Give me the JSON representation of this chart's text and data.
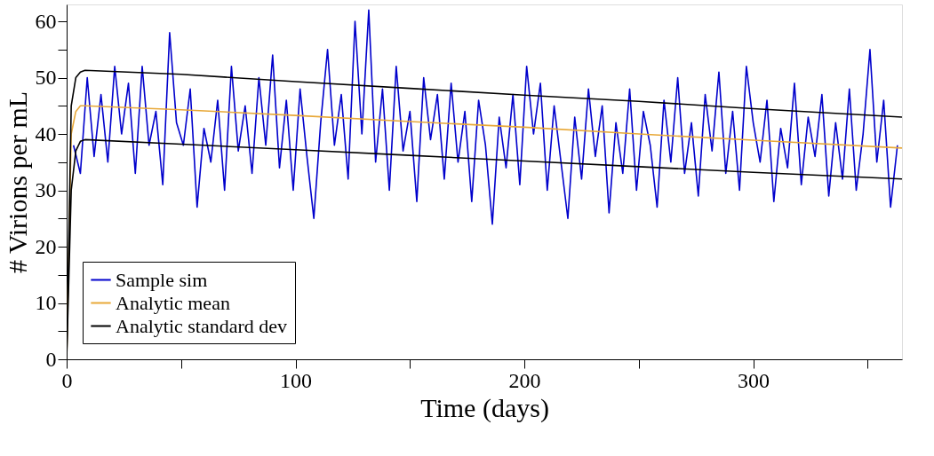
{
  "chart_data": {
    "type": "line",
    "xlabel": "Time (days)",
    "ylabel": "# Virions per mL",
    "xlim": [
      0,
      365
    ],
    "ylim": [
      0,
      63
    ],
    "xticks": [
      0,
      {
        "value": 50,
        "label": null
      },
      100,
      {
        "value": 150,
        "label": null
      },
      200,
      {
        "value": 250,
        "label": null
      },
      300,
      {
        "value": 350,
        "label": null
      }
    ],
    "yticks": [
      0,
      {
        "value": 5,
        "label": null
      },
      10,
      {
        "value": 15,
        "label": null
      },
      20,
      {
        "value": 25,
        "label": null
      },
      30,
      {
        "value": 35,
        "label": null
      },
      40,
      {
        "value": 45,
        "label": null
      },
      50,
      {
        "value": 55,
        "label": null
      },
      60
    ],
    "grid": false,
    "legend": "bottom left",
    "line_style": "solid",
    "marker": "none",
    "series": [
      {
        "name": "Sample sim",
        "color": "#0000cc",
        "x": [
          3,
          6,
          9,
          12,
          15,
          18,
          21,
          24,
          27,
          30,
          33,
          36,
          39,
          42,
          45,
          48,
          51,
          54,
          57,
          60,
          63,
          66,
          69,
          72,
          75,
          78,
          81,
          84,
          87,
          90,
          93,
          96,
          99,
          102,
          105,
          108,
          111,
          114,
          117,
          120,
          123,
          126,
          129,
          132,
          135,
          138,
          141,
          144,
          147,
          150,
          153,
          156,
          159,
          162,
          165,
          168,
          171,
          174,
          177,
          180,
          183,
          186,
          189,
          192,
          195,
          198,
          201,
          204,
          207,
          210,
          213,
          216,
          219,
          222,
          225,
          228,
          231,
          234,
          237,
          240,
          243,
          246,
          249,
          252,
          255,
          258,
          261,
          264,
          267,
          270,
          273,
          276,
          279,
          282,
          285,
          288,
          291,
          294,
          297,
          300,
          303,
          306,
          309,
          312,
          315,
          318,
          321,
          324,
          327,
          330,
          333,
          336,
          339,
          342,
          345,
          348,
          351,
          354,
          357,
          360,
          363
        ],
        "values": [
          38,
          33,
          50,
          36,
          47,
          35,
          52,
          40,
          49,
          33,
          52,
          38,
          44,
          31,
          58,
          42,
          38,
          48,
          27,
          41,
          35,
          46,
          30,
          52,
          37,
          45,
          33,
          50,
          38,
          54,
          34,
          46,
          30,
          48,
          36,
          25,
          42,
          55,
          38,
          47,
          32,
          60,
          40,
          62,
          35,
          48,
          30,
          52,
          37,
          44,
          28,
          50,
          39,
          47,
          32,
          49,
          35,
          44,
          28,
          46,
          38,
          24,
          43,
          34,
          47,
          31,
          52,
          40,
          49,
          30,
          45,
          35,
          25,
          43,
          32,
          48,
          36,
          45,
          26,
          42,
          33,
          48,
          30,
          44,
          38,
          27,
          46,
          35,
          50,
          33,
          42,
          29,
          47,
          37,
          51,
          33,
          44,
          30,
          52,
          42,
          35,
          46,
          28,
          41,
          34,
          49,
          31,
          43,
          36,
          47,
          29,
          42,
          32,
          48,
          30,
          40,
          55,
          35,
          46,
          27,
          38
        ]
      },
      {
        "name": "Analytic mean",
        "color": "#e8a838",
        "x": [
          0,
          2,
          4,
          6,
          8,
          50,
          100,
          150,
          200,
          250,
          300,
          365
        ],
        "values": [
          0,
          40,
          44,
          45,
          45,
          44.3,
          43.3,
          42.2,
          41.2,
          40,
          38.9,
          37.5
        ]
      },
      {
        "name": "Analytic standard dev",
        "color": "#000000",
        "x": [
          0,
          2,
          4,
          6,
          8,
          50,
          100,
          150,
          200,
          250,
          300,
          365
        ],
        "values": [
          0,
          45,
          50,
          51,
          51.3,
          50.6,
          49.3,
          48.1,
          46.9,
          45.8,
          44.5,
          43
        ]
      },
      {
        "color": "#000000",
        "x": [
          0,
          2,
          4,
          6,
          8,
          50,
          100,
          150,
          200,
          250,
          300,
          365
        ],
        "values": [
          0,
          30,
          37,
          38.7,
          39,
          38.2,
          37.2,
          36.2,
          35.2,
          34.2,
          33.2,
          32
        ]
      }
    ]
  }
}
